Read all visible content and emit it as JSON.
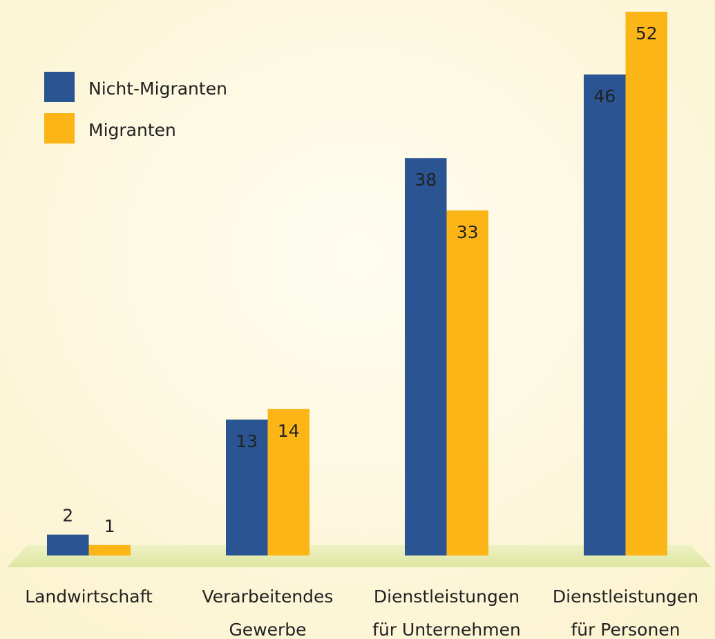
{
  "chart_data": {
    "type": "bar",
    "categories": [
      "Landwirtschaft",
      [
        "Verarbeitendes",
        "Gewerbe"
      ],
      [
        "Dienstleistungen",
        "für Unternehmen"
      ],
      [
        "Dienstleistungen",
        "für Personen"
      ]
    ],
    "series": [
      {
        "name": "Nicht-Migranten",
        "color": "#2a5592",
        "values": [
          2,
          13,
          38,
          46
        ]
      },
      {
        "name": "Migranten",
        "color": "#fbb516",
        "values": [
          1,
          14,
          33,
          52
        ]
      }
    ]
  }
}
